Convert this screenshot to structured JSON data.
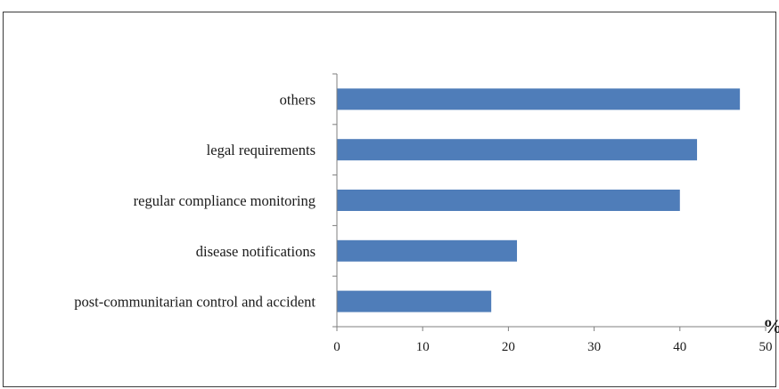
{
  "chart_data": {
    "type": "bar",
    "orientation": "horizontal",
    "categories": [
      "others",
      "legal requirements",
      "regular compliance monitoring",
      "disease notifications",
      "post-communitarian control and accident"
    ],
    "values": [
      47,
      42,
      40,
      21,
      18
    ],
    "xticks": [
      "0",
      "10",
      "20",
      "30",
      "40",
      "50"
    ],
    "xlim": [
      0,
      50
    ],
    "unit_label": "%",
    "bar_color": "#4f7db9",
    "grid": false,
    "legend": "none"
  }
}
